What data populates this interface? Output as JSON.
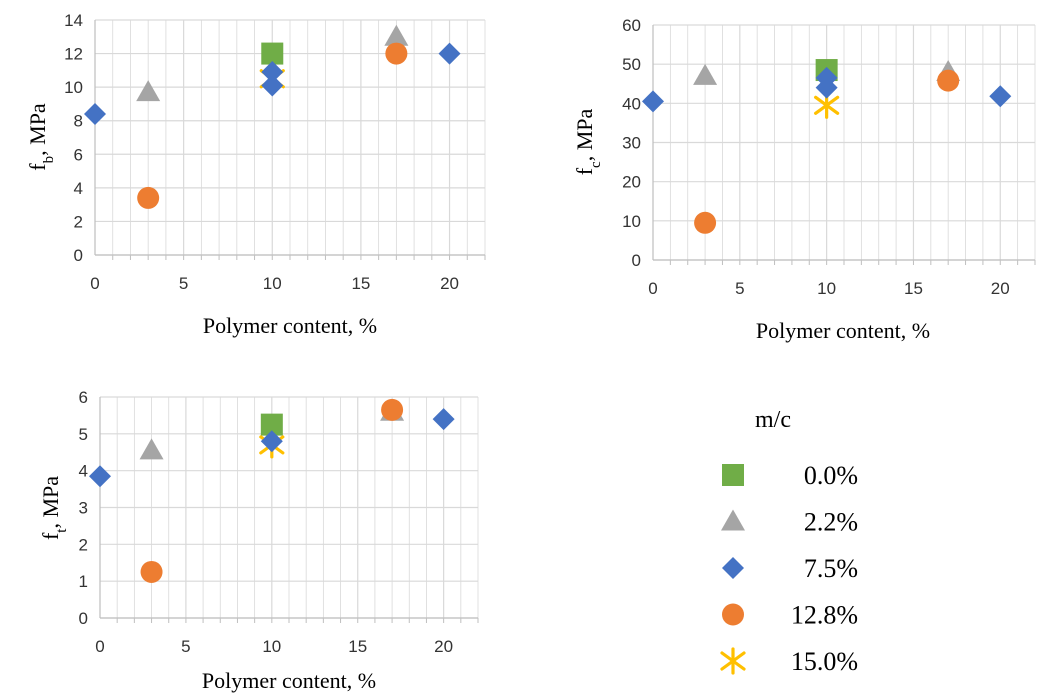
{
  "colors": {
    "0.0%": "#70AD47",
    "2.2%": "#A5A5A5",
    "7.5%": "#4472C4",
    "12.8%": "#ED7D31",
    "15.0%": "#FFC000",
    "grid": "#D9D9D9",
    "axis": "#BFBFBF"
  },
  "legend": {
    "title": "m/c",
    "items": [
      {
        "label": "0.0%",
        "marker": "square",
        "color": "#70AD47"
      },
      {
        "label": "2.2%",
        "marker": "triangle",
        "color": "#A5A5A5"
      },
      {
        "label": "7.5%",
        "marker": "diamond",
        "color": "#4472C4"
      },
      {
        "label": "12.8%",
        "marker": "circle",
        "color": "#ED7D31"
      },
      {
        "label": "15.0%",
        "marker": "star",
        "color": "#FFC000"
      }
    ]
  },
  "chart_data": [
    {
      "id": "fb",
      "type": "scatter",
      "xlabel": "Polymer content, %",
      "ylabel_main": "f",
      "ylabel_sub": "b",
      "ylabel_rest": ", MPa",
      "xlim": [
        0,
        22
      ],
      "ylim": [
        0,
        14
      ],
      "xticks": [
        0,
        5,
        10,
        15,
        20
      ],
      "yticks": [
        0,
        2,
        4,
        6,
        8,
        10,
        12,
        14
      ],
      "grid": true,
      "series": [
        {
          "name": "0.0%",
          "marker": "square",
          "color": "#70AD47",
          "points": [
            [
              10,
              12.0
            ]
          ]
        },
        {
          "name": "2.2%",
          "marker": "triangle",
          "color": "#A5A5A5",
          "points": [
            [
              3,
              9.7
            ],
            [
              17,
              13.0
            ]
          ]
        },
        {
          "name": "12.8%",
          "marker": "circle",
          "color": "#ED7D31",
          "points": [
            [
              3,
              3.4
            ],
            [
              17,
              12.0
            ]
          ]
        },
        {
          "name": "15.0%",
          "marker": "star",
          "color": "#FFC000",
          "points": [
            [
              10,
              10.5
            ]
          ]
        },
        {
          "name": "7.5%",
          "marker": "diamond",
          "color": "#4472C4",
          "points": [
            [
              0,
              8.4
            ],
            [
              10,
              10.9
            ],
            [
              10,
              10.1
            ],
            [
              20,
              12.0
            ]
          ]
        }
      ]
    },
    {
      "id": "fc",
      "type": "scatter",
      "xlabel": "Polymer content, %",
      "ylabel_main": "f",
      "ylabel_sub": "c",
      "ylabel_rest": ", MPa",
      "xlim": [
        0,
        22
      ],
      "ylim": [
        0,
        60
      ],
      "xticks": [
        0,
        5,
        10,
        15,
        20
      ],
      "yticks": [
        0,
        10,
        20,
        30,
        40,
        50,
        60
      ],
      "grid": true,
      "series": [
        {
          "name": "0.0%",
          "marker": "square",
          "color": "#70AD47",
          "points": [
            [
              10,
              48.5
            ]
          ]
        },
        {
          "name": "2.2%",
          "marker": "triangle",
          "color": "#A5A5A5",
          "points": [
            [
              3,
              47.0
            ],
            [
              17,
              48.0
            ]
          ]
        },
        {
          "name": "12.8%",
          "marker": "circle",
          "color": "#ED7D31",
          "points": [
            [
              3,
              9.5
            ],
            [
              17,
              45.8
            ]
          ]
        },
        {
          "name": "15.0%",
          "marker": "star",
          "color": "#FFC000",
          "points": [
            [
              10,
              39.5
            ]
          ]
        },
        {
          "name": "7.5%",
          "marker": "diamond",
          "color": "#4472C4",
          "points": [
            [
              0,
              40.5
            ],
            [
              10,
              46.5
            ],
            [
              10,
              44.0
            ],
            [
              20,
              41.8
            ]
          ]
        }
      ]
    },
    {
      "id": "ft",
      "type": "scatter",
      "xlabel": "Polymer content, %",
      "ylabel_main": "f",
      "ylabel_sub": "t",
      "ylabel_rest": ", MPa",
      "xlim": [
        0,
        22
      ],
      "ylim": [
        0,
        6
      ],
      "xticks": [
        0,
        5,
        10,
        15,
        20
      ],
      "yticks": [
        0,
        1,
        2,
        3,
        4,
        5,
        6
      ],
      "grid": true,
      "series": [
        {
          "name": "0.0%",
          "marker": "square",
          "color": "#70AD47",
          "points": [
            [
              10,
              5.25
            ]
          ]
        },
        {
          "name": "2.2%",
          "marker": "triangle",
          "color": "#A5A5A5",
          "points": [
            [
              3,
              4.55
            ],
            [
              17,
              5.6
            ]
          ]
        },
        {
          "name": "12.8%",
          "marker": "circle",
          "color": "#ED7D31",
          "points": [
            [
              3,
              1.25
            ],
            [
              17,
              5.65
            ]
          ]
        },
        {
          "name": "15.0%",
          "marker": "star",
          "color": "#FFC000",
          "points": [
            [
              10,
              4.7
            ]
          ]
        },
        {
          "name": "7.5%",
          "marker": "diamond",
          "color": "#4472C4",
          "points": [
            [
              0,
              3.85
            ],
            [
              10,
              4.8
            ],
            [
              20,
              5.4
            ]
          ]
        }
      ]
    }
  ]
}
